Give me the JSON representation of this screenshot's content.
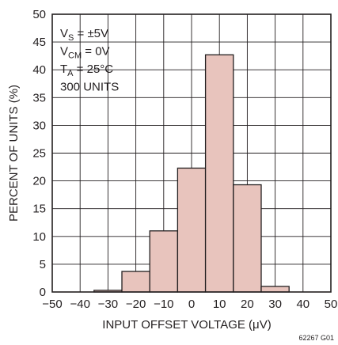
{
  "chart_data": {
    "type": "bar",
    "title": "",
    "xlabel": "INPUT OFFSET VOLTAGE (μV)",
    "ylabel": "PERCENT OF UNITS (%)",
    "xlim": [
      -50,
      50
    ],
    "ylim": [
      0,
      50
    ],
    "xticks": [
      -50,
      -40,
      -30,
      -20,
      -10,
      0,
      10,
      20,
      30,
      40,
      50
    ],
    "yticks": [
      0,
      5,
      10,
      15,
      20,
      25,
      30,
      35,
      40,
      45,
      50
    ],
    "grid": true,
    "bins": [
      {
        "from": -35,
        "to": -25,
        "value": 0.3
      },
      {
        "from": -25,
        "to": -15,
        "value": 3.7
      },
      {
        "from": -15,
        "to": -5,
        "value": 11.0
      },
      {
        "from": -5,
        "to": 5,
        "value": 22.3
      },
      {
        "from": 5,
        "to": 15,
        "value": 42.7
      },
      {
        "from": 15,
        "to": 25,
        "value": 19.3
      },
      {
        "from": 25,
        "to": 35,
        "value": 1.0
      }
    ],
    "conditions": [
      {
        "main": "V",
        "sub": "S",
        "rest": " = ±5V"
      },
      {
        "main": "V",
        "sub": "CM",
        "rest": " = 0V"
      },
      {
        "main": "T",
        "sub": "A",
        "rest": " = 25°C"
      },
      {
        "main": "300 UNITS",
        "sub": "",
        "rest": ""
      }
    ],
    "code": "62267 G01"
  },
  "colors": {
    "bar_fill": "#e8c4bd",
    "bar_stroke": "#231f20",
    "grid": "#231f20",
    "text": "#231f20"
  }
}
